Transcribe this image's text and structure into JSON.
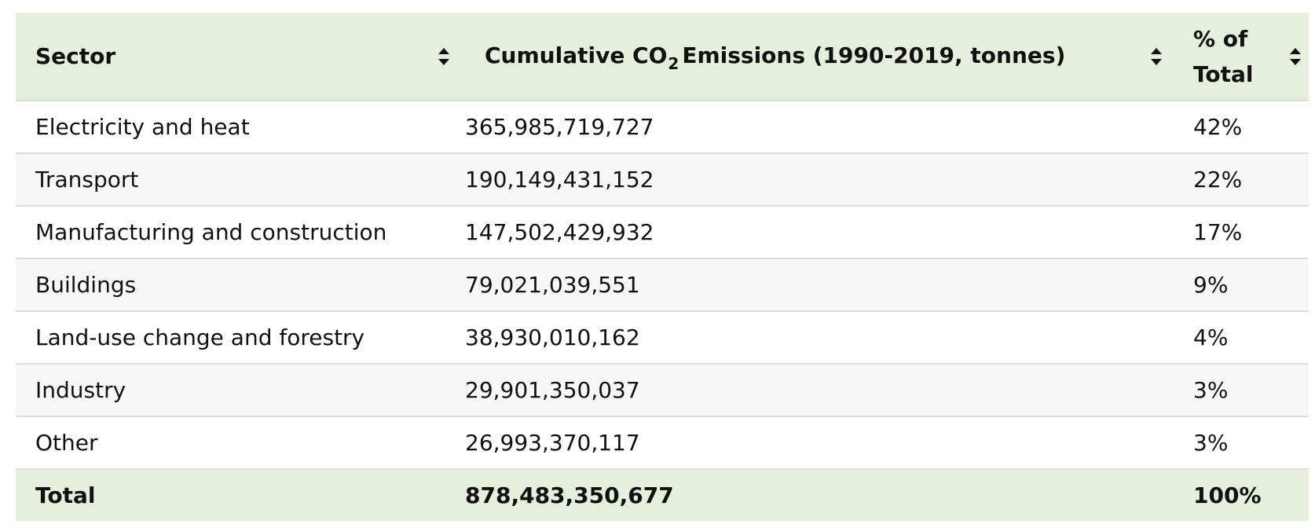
{
  "table": {
    "headers": {
      "sector": "Sector",
      "emissions_prefix": "Cumulative CO",
      "emissions_subscript": "2",
      "emissions_suffix": "Emissions (1990-2019, tonnes)",
      "pct_line1": "% of",
      "pct_line2": "Total"
    },
    "rows": [
      {
        "sector": "Electricity and heat",
        "emissions": "365,985,719,727",
        "pct": "42%"
      },
      {
        "sector": "Transport",
        "emissions": "190,149,431,152",
        "pct": "22%"
      },
      {
        "sector": "Manufacturing and construction",
        "emissions": "147,502,429,932",
        "pct": "17%"
      },
      {
        "sector": "Buildings",
        "emissions": "79,021,039,551",
        "pct": "9%"
      },
      {
        "sector": "Land-use change and forestry",
        "emissions": "38,930,010,162",
        "pct": "4%"
      },
      {
        "sector": "Industry",
        "emissions": "29,901,350,037",
        "pct": "3%"
      },
      {
        "sector": "Other",
        "emissions": "26,993,370,117",
        "pct": "3%"
      }
    ],
    "total": {
      "sector": "Total",
      "emissions": "878,483,350,677",
      "pct": "100%"
    }
  },
  "icons": {
    "sort": "sort-icon"
  },
  "colors": {
    "header_bg": "#e6efdc",
    "stripe_bg": "#f7f7f7",
    "border": "#dcdcdc"
  }
}
